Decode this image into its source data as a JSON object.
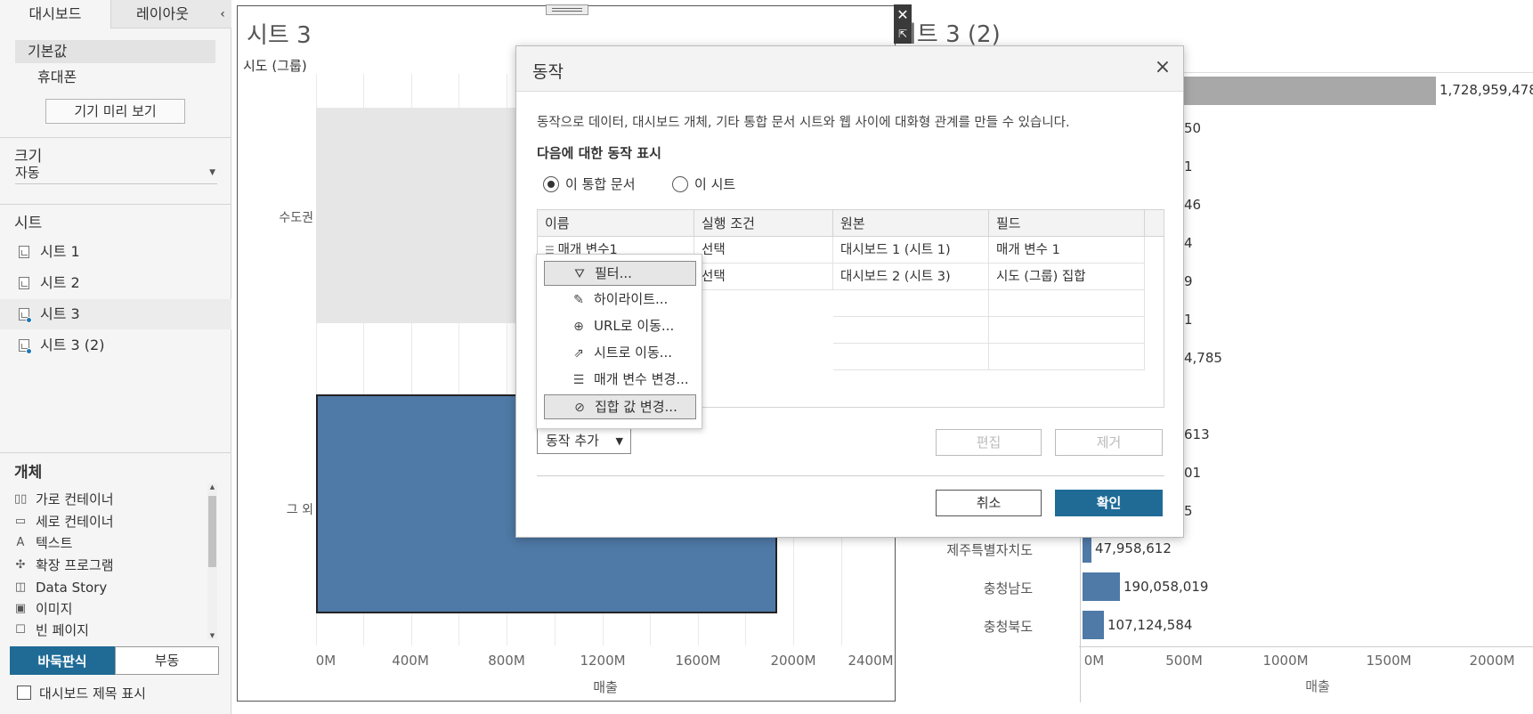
{
  "left_pane": {
    "tabs": [
      "대시보드",
      "레이아웃"
    ],
    "collapse_icon": "chevron-left-icon",
    "devices": [
      "기본값",
      "휴대폰"
    ],
    "preview_button": "기기 미리 보기",
    "size": {
      "title": "크기",
      "value": "자동"
    },
    "sheets": {
      "title": "시트",
      "items": [
        "시트 1",
        "시트 2",
        "시트 3",
        "시트 3 (2)"
      ]
    },
    "objects": {
      "title": "개체",
      "items": [
        "가로 컨테이너",
        "세로 컨테이너",
        "텍스트",
        "확장 프로그램",
        "Data Story",
        "이미지",
        "빈 페이지"
      ]
    },
    "tiled_button": "바둑판식",
    "floating_button": "부동",
    "show_title_label": "대시보드 제목 표시"
  },
  "sheet3": {
    "title": "시트 3",
    "row_header": "시도 (그룹)",
    "rows": [
      "수도권",
      "그 외"
    ],
    "x_ticks": [
      "0M",
      "400M",
      "800M",
      "1200M",
      "1600M",
      "2000M",
      "2400M"
    ],
    "x_title": "매출"
  },
  "sheet3_2": {
    "title": "시트 3 (2)",
    "visible_values": [
      "1,728,959,478",
      "50",
      "1",
      "46",
      "4",
      "9",
      "1",
      "4,785",
      "613",
      "01",
      "5"
    ],
    "categories": [
      "제주특별자치도",
      "충청남도",
      "충청북도"
    ],
    "category_values": [
      "47,958,612",
      "190,058,019",
      "107,124,584"
    ],
    "x_ticks": [
      "0M",
      "500M",
      "1000M",
      "1500M",
      "2000M"
    ],
    "x_title": "매출"
  },
  "dialog": {
    "title": "동작",
    "description": "동작으로 데이터, 대시보드 개체, 기타 통합 문서 시트와 웹 사이에 대화형 관계를 만들 수 있습니다.",
    "show_for": "다음에 대한 동작 표시",
    "radio_workbook": "이 통합 문서",
    "radio_sheet": "이 시트",
    "columns": [
      "이름",
      "실행 조건",
      "원본",
      "필드"
    ],
    "rows": [
      {
        "name": "매개 변수1",
        "run_on": "선택",
        "source": "대시보드 1 (시트 1)",
        "field": "매개 변수 1"
      },
      {
        "name": "",
        "run_on": "선택",
        "source": "대시보드 2 (시트 3)",
        "field": "시도 (그룹) 집합"
      }
    ],
    "add_action": "동작 추가",
    "edit": "편집",
    "remove": "제거",
    "cancel": "취소",
    "ok": "확인"
  },
  "menu": {
    "items": [
      {
        "label": "필터...",
        "icon": "filter-icon"
      },
      {
        "label": "하이라이트...",
        "icon": "highlighter-icon"
      },
      {
        "label": "URL로 이동...",
        "icon": "globe-icon"
      },
      {
        "label": "시트로 이동...",
        "icon": "goto-sheet-icon"
      },
      {
        "label": "매개 변수 변경...",
        "icon": "sliders-icon"
      },
      {
        "label": "집합 값 변경...",
        "icon": "set-icon"
      }
    ]
  },
  "colors": {
    "accent": "#1f6b96",
    "bar": "#4f79a6",
    "bar_light": "#e6e6e6"
  }
}
